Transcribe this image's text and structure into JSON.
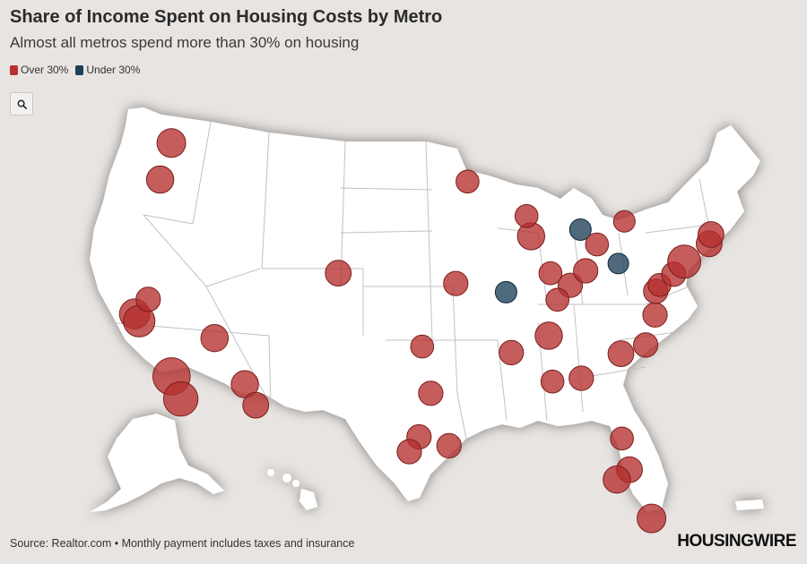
{
  "header": {
    "title": "Share of Income Spent on Housing Costs by Metro",
    "subtitle": "Almost all metros spend more than 30% on housing"
  },
  "legend": [
    {
      "label": "Over 30%",
      "color": "#b5302e"
    },
    {
      "label": "Under 30%",
      "color": "#1d4058"
    }
  ],
  "toolbar": {
    "zoom_icon": "search-icon"
  },
  "footer": {
    "source": "Source: Realtor.com • Monthly payment includes taxes and insurance",
    "logo": "HOUSINGWIRE"
  },
  "colors": {
    "over": "#b5302e",
    "under": "#1d4058",
    "land": "#ffffff",
    "border": "#bbbbbb",
    "background": "#e8e4e1"
  },
  "map_data": {
    "type": "bubble-map",
    "projection": "albers-usa",
    "metros": [
      {
        "lon": -122.33,
        "lat": 47.61,
        "category": "over",
        "size": 1.0
      },
      {
        "lon": -122.68,
        "lat": 45.52,
        "category": "over",
        "size": 0.95
      },
      {
        "lon": -122.42,
        "lat": 37.77,
        "category": "over",
        "size": 1.05
      },
      {
        "lon": -121.89,
        "lat": 37.34,
        "category": "over",
        "size": 1.1
      },
      {
        "lon": -121.49,
        "lat": 38.58,
        "category": "over",
        "size": 0.85
      },
      {
        "lon": -118.24,
        "lat": 34.05,
        "category": "over",
        "size": 1.3
      },
      {
        "lon": -117.16,
        "lat": 32.72,
        "category": "over",
        "size": 1.2
      },
      {
        "lon": -115.14,
        "lat": 36.17,
        "category": "over",
        "size": 0.95
      },
      {
        "lon": -112.07,
        "lat": 33.45,
        "category": "over",
        "size": 0.95
      },
      {
        "lon": -110.97,
        "lat": 32.22,
        "category": "over",
        "size": 0.9
      },
      {
        "lon": -104.99,
        "lat": 39.74,
        "category": "over",
        "size": 0.9
      },
      {
        "lon": -93.27,
        "lat": 44.98,
        "category": "over",
        "size": 0.8
      },
      {
        "lon": -94.58,
        "lat": 39.1,
        "category": "over",
        "size": 0.85
      },
      {
        "lon": -90.2,
        "lat": 38.63,
        "category": "under",
        "size": 0.75
      },
      {
        "lon": -97.52,
        "lat": 35.47,
        "category": "over",
        "size": 0.8
      },
      {
        "lon": -96.8,
        "lat": 32.78,
        "category": "over",
        "size": 0.85
      },
      {
        "lon": -97.74,
        "lat": 30.27,
        "category": "over",
        "size": 0.85
      },
      {
        "lon": -98.49,
        "lat": 29.42,
        "category": "over",
        "size": 0.85
      },
      {
        "lon": -95.37,
        "lat": 29.76,
        "category": "over",
        "size": 0.85
      },
      {
        "lon": -87.63,
        "lat": 41.88,
        "category": "over",
        "size": 0.95
      },
      {
        "lon": -87.91,
        "lat": 43.04,
        "category": "over",
        "size": 0.8
      },
      {
        "lon": -83.05,
        "lat": 42.33,
        "category": "under",
        "size": 0.75
      },
      {
        "lon": -81.69,
        "lat": 41.5,
        "category": "over",
        "size": 0.8
      },
      {
        "lon": -79.99,
        "lat": 40.44,
        "category": "under",
        "size": 0.72
      },
      {
        "lon": -78.88,
        "lat": 42.89,
        "category": "over",
        "size": 0.75
      },
      {
        "lon": -86.16,
        "lat": 39.77,
        "category": "over",
        "size": 0.8
      },
      {
        "lon": -84.51,
        "lat": 39.1,
        "category": "over",
        "size": 0.85
      },
      {
        "lon": -83.0,
        "lat": 39.96,
        "category": "over",
        "size": 0.85
      },
      {
        "lon": -85.76,
        "lat": 38.25,
        "category": "over",
        "size": 0.8
      },
      {
        "lon": -86.78,
        "lat": 36.16,
        "category": "over",
        "size": 0.95
      },
      {
        "lon": -90.05,
        "lat": 35.15,
        "category": "over",
        "size": 0.85
      },
      {
        "lon": -86.8,
        "lat": 33.52,
        "category": "over",
        "size": 0.8
      },
      {
        "lon": -84.39,
        "lat": 33.75,
        "category": "over",
        "size": 0.85
      },
      {
        "lon": -80.84,
        "lat": 35.23,
        "category": "over",
        "size": 0.9
      },
      {
        "lon": -78.64,
        "lat": 35.78,
        "category": "over",
        "size": 0.85
      },
      {
        "lon": -77.44,
        "lat": 37.54,
        "category": "over",
        "size": 0.85
      },
      {
        "lon": -77.04,
        "lat": 38.91,
        "category": "over",
        "size": 0.85
      },
      {
        "lon": -76.61,
        "lat": 39.29,
        "category": "over",
        "size": 0.8
      },
      {
        "lon": -75.17,
        "lat": 39.95,
        "category": "over",
        "size": 0.85
      },
      {
        "lon": -74.01,
        "lat": 40.71,
        "category": "over",
        "size": 1.15
      },
      {
        "lon": -71.41,
        "lat": 41.82,
        "category": "over",
        "size": 0.9
      },
      {
        "lon": -71.06,
        "lat": 42.36,
        "category": "over",
        "size": 0.9
      },
      {
        "lon": -81.66,
        "lat": 30.33,
        "category": "over",
        "size": 0.8
      },
      {
        "lon": -81.38,
        "lat": 28.54,
        "category": "over",
        "size": 0.9
      },
      {
        "lon": -82.46,
        "lat": 27.95,
        "category": "over",
        "size": 0.95
      },
      {
        "lon": -80.19,
        "lat": 25.76,
        "category": "over",
        "size": 1.0
      }
    ]
  }
}
